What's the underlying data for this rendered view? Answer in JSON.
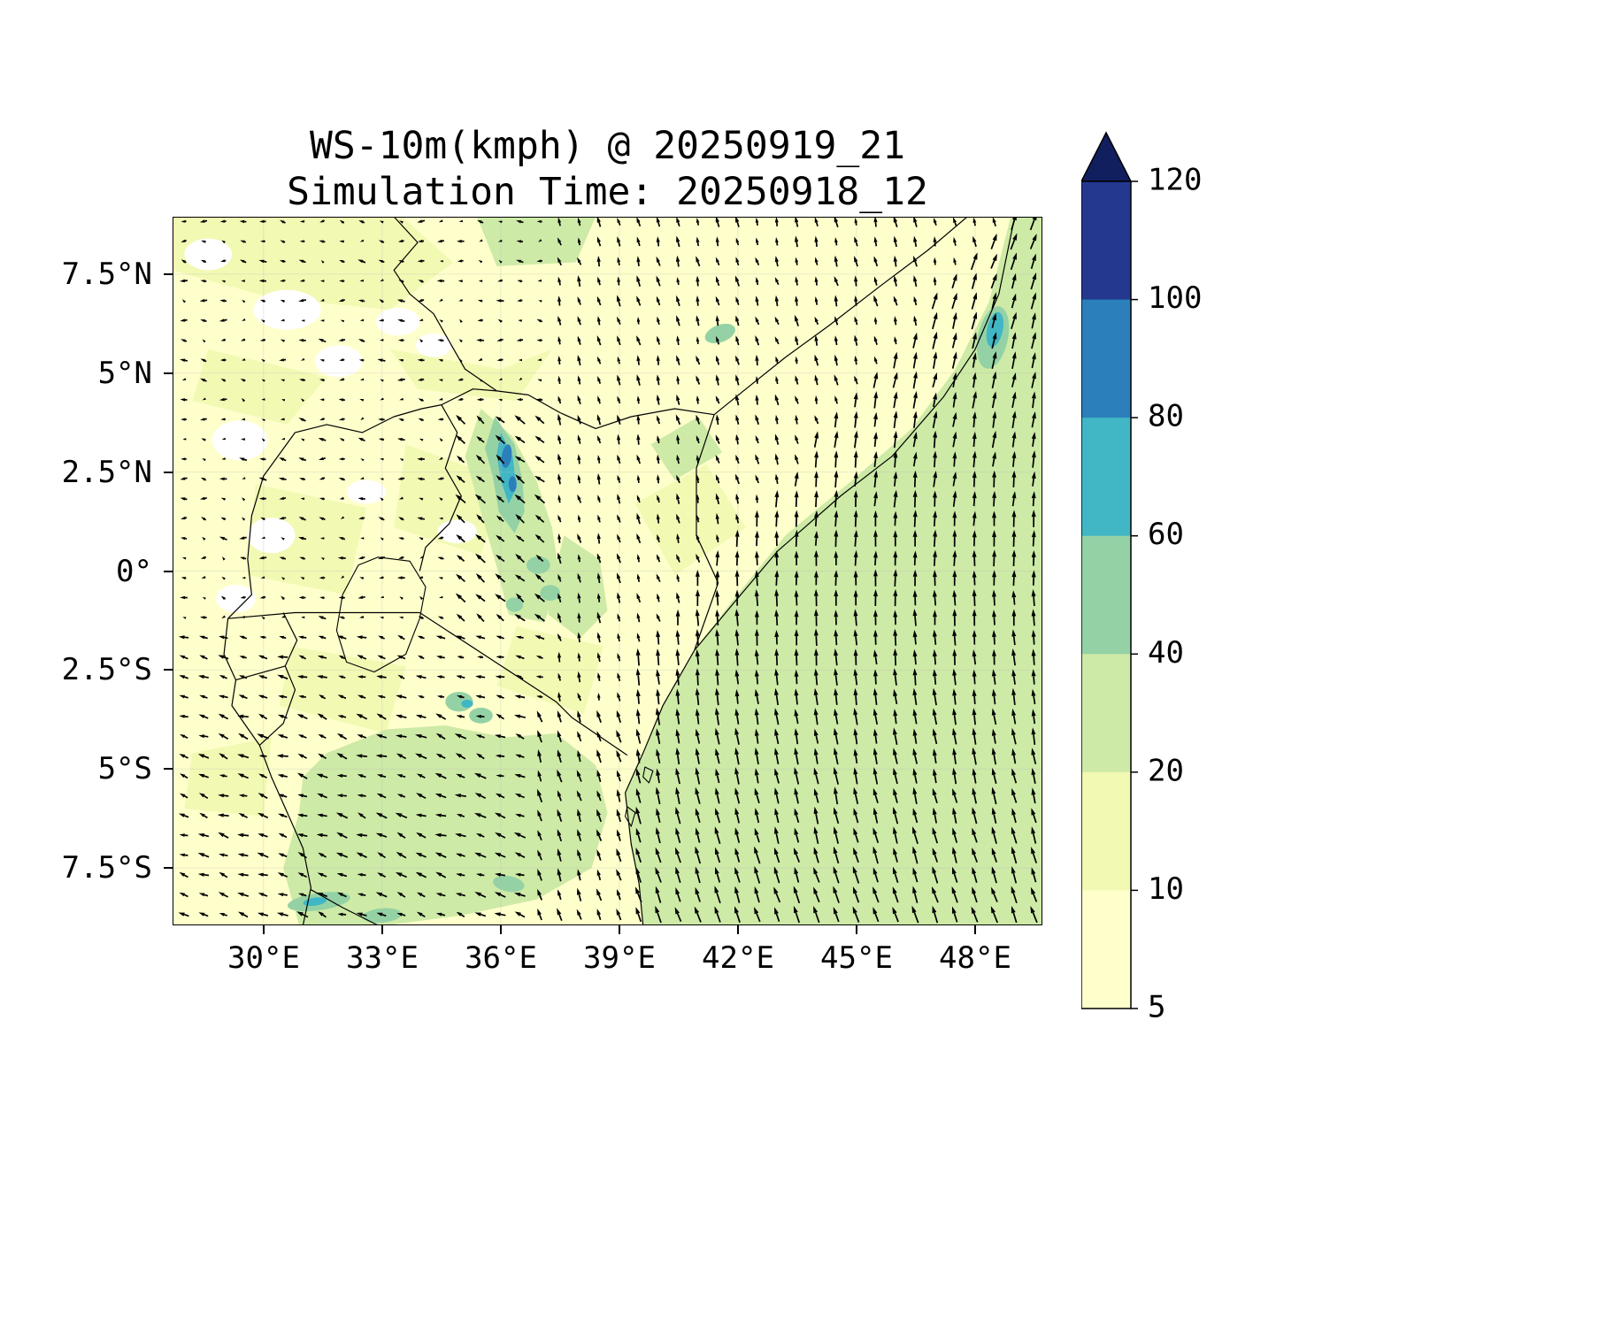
{
  "chart_data": {
    "type": "heatmap",
    "subtype": "filled-contour wind-speed map with quiver arrows and country borders",
    "title": "WS-10m(kmph) @ 20250919_21",
    "subtitle": "Simulation Time: 20250918_12",
    "variable": "10 m wind speed",
    "units": "kmph",
    "valid_time_label": "20250919_21",
    "simulation_time_label": "20250918_12",
    "x_axis": {
      "tick_labels": [
        "30°E",
        "33°E",
        "36°E",
        "39°E",
        "42°E",
        "45°E",
        "48°E"
      ],
      "tick_values": [
        30,
        33,
        36,
        39,
        42,
        45,
        48
      ],
      "range_deg_east": [
        27.7,
        49.7
      ],
      "grid": true
    },
    "y_axis": {
      "tick_labels": [
        "7.5°N",
        "5°N",
        "2.5°N",
        "0°",
        "2.5°S",
        "5°S",
        "7.5°S"
      ],
      "tick_values": [
        7.5,
        5,
        2.5,
        0,
        -2.5,
        -5,
        -7.5
      ],
      "range_deg_north": [
        -8.95,
        8.95
      ],
      "grid": true
    },
    "colorbar": {
      "position": "right",
      "orientation": "vertical",
      "tick_labels_top_to_bottom": [
        "120",
        "100",
        "80",
        "60",
        "40",
        "20",
        "10",
        "5"
      ],
      "levels_ascending": [
        5,
        10,
        20,
        40,
        60,
        80,
        100,
        120
      ],
      "band_colors_low_to_high": [
        "#ffffcc",
        "#f2f9b3",
        "#cdeaa6",
        "#94d2a5",
        "#41b6c4",
        "#2b7fba",
        "#24388f"
      ],
      "over_color": "#121f5e",
      "under_color": "#ffffff",
      "extend": "max-arrow-on-top"
    },
    "map_features": [
      "country borders",
      "East African coastline",
      "Lake Victoria outline",
      "Zanzibar and Pemba islands"
    ],
    "arrow_grid_spacing_deg": 0.5,
    "wind_field_summary": [
      {
        "region": "Indian Ocean and coastal strip east of the coastline",
        "direction": "northward (slight westward lean south of equator, eastward lean in far northeast)",
        "speed_band_kmph": "20-40"
      },
      {
        "region": "Kenya highlands / Turkana channel (~36E, 1.5-4N)",
        "direction": "strong toward northwest",
        "speed_band_kmph": "40-100 patches"
      },
      {
        "region": "northeast Kenya and interior Somalia / Ogaden",
        "direction": "moderate northward",
        "speed_band_kmph": "5-20"
      },
      {
        "region": "northwest interior (Uganda / South Sudan / west Ethiopia)",
        "direction": "weak easterly, many calm spots",
        "speed_band_kmph": "<5-10"
      },
      {
        "region": "central and southern Tanzania interior",
        "direction": "easterly to southeasterly (arrows point west/northwest)",
        "speed_band_kmph": "10-40 with 40-60 streaks near 8.5S"
      },
      {
        "region": "far northeast coastal Somalia (~48.5E, 5-6.5N)",
        "direction": "northward",
        "speed_band_kmph": "40-80 patch"
      }
    ]
  }
}
